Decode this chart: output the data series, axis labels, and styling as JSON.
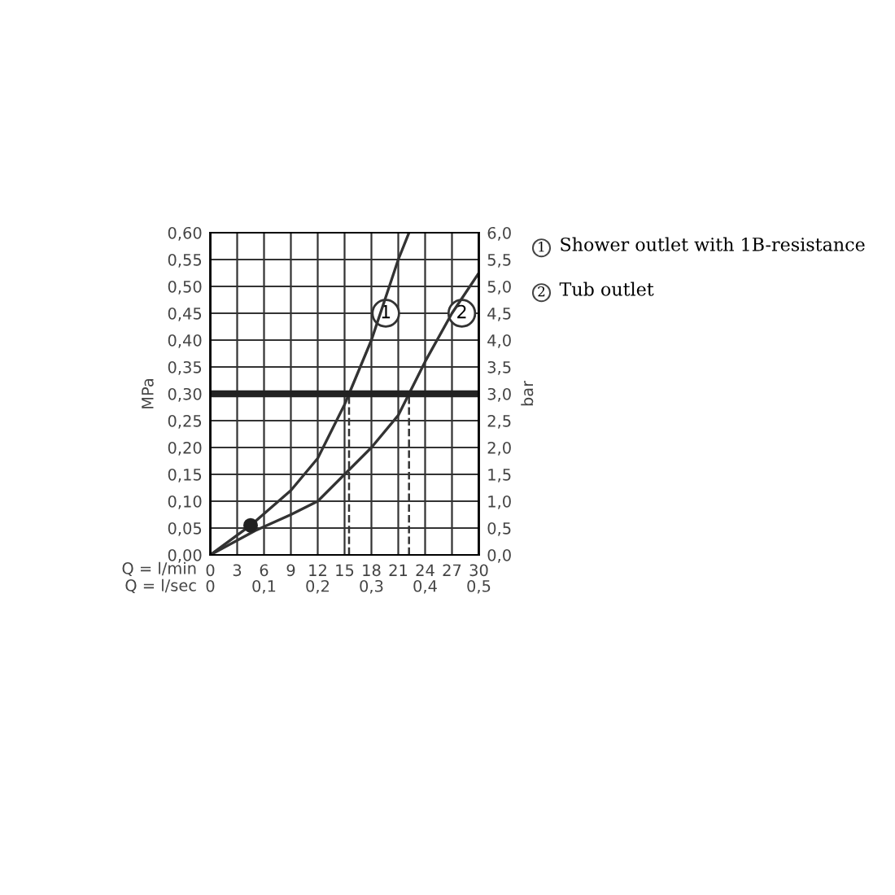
{
  "chart_data": {
    "type": "line",
    "xlabel": "Q = l/min",
    "x2label": "Q = l/sec",
    "ylabel": "MPa",
    "y2label": "bar",
    "xlim": [
      0,
      30
    ],
    "xticks": [
      0,
      3,
      6,
      9,
      12,
      15,
      18,
      21,
      24,
      27,
      30
    ],
    "x2lim": [
      0,
      0.5
    ],
    "x2ticks": [
      0,
      {
        "value": 0.1,
        "label": "0,1"
      },
      {
        "value": 0.2,
        "label": "0,2"
      },
      {
        "value": 0.3,
        "label": "0,3"
      },
      {
        "value": 0.4,
        "label": "0,4"
      },
      {
        "value": 0.5,
        "label": "0,5"
      }
    ],
    "ylim": [
      0,
      0.6
    ],
    "yticks": [
      {
        "value": 0,
        "label": "0,00"
      },
      {
        "value": 0.05,
        "label": "0,05"
      },
      {
        "value": 0.1,
        "label": "0,10"
      },
      {
        "value": 0.15,
        "label": "0,15"
      },
      {
        "value": 0.2,
        "label": "0,20"
      },
      {
        "value": 0.25,
        "label": "0,25"
      },
      {
        "value": 0.3,
        "label": "0,30"
      },
      {
        "value": 0.35,
        "label": "0,35"
      },
      {
        "value": 0.4,
        "label": "0,40"
      },
      {
        "value": 0.45,
        "label": "0,45"
      },
      {
        "value": 0.5,
        "label": "0,50"
      },
      {
        "value": 0.55,
        "label": "0,55"
      },
      {
        "value": 0.6,
        "label": "0,60"
      }
    ],
    "y2lim": [
      0,
      6
    ],
    "y2ticks": [
      {
        "value": 0,
        "label": "0,0"
      },
      {
        "value": 0.5,
        "label": "0,5"
      },
      {
        "value": 1,
        "label": "1,0"
      },
      {
        "value": 1.5,
        "label": "1,5"
      },
      {
        "value": 2,
        "label": "2,0"
      },
      {
        "value": 2.5,
        "label": "2,5"
      },
      {
        "value": 3,
        "label": "3,0"
      },
      {
        "value": 3.5,
        "label": "3,5"
      },
      {
        "value": 4,
        "label": "4,0"
      },
      {
        "value": 4.5,
        "label": "4,5"
      },
      {
        "value": 5,
        "label": "5,0"
      },
      {
        "value": 5.5,
        "label": "5,5"
      },
      {
        "value": 6,
        "label": "6,0"
      }
    ],
    "grid": true,
    "legend": false,
    "series": [
      {
        "color": "#333333",
        "x": [
          0,
          4.5,
          9,
          12,
          15,
          15.5,
          18,
          21,
          22.2
        ],
        "values": [
          0,
          0.055,
          0.12,
          0.18,
          0.28,
          0.3,
          0.4,
          0.55,
          0.6
        ]
      },
      {
        "color": "#333333",
        "x": [
          0,
          5,
          9,
          12,
          15,
          18,
          21,
          22.2,
          24,
          27,
          30
        ],
        "values": [
          0,
          0.045,
          0.075,
          0.1,
          0.15,
          0.2,
          0.26,
          0.3,
          0.36,
          0.45,
          0.525
        ]
      },
      {
        "type": "scatter",
        "color": "#222222",
        "x": [
          4.5
        ],
        "values": [
          0.055
        ]
      },
      {
        "color": "#333333",
        "line_style": "dashed",
        "x": [
          15.5,
          15.5
        ],
        "values": [
          0,
          0.3
        ]
      },
      {
        "color": "#333333",
        "line_style": "dashed",
        "x": [
          22.2,
          22.2
        ],
        "values": [
          0,
          0.3
        ]
      }
    ],
    "ref_lines": [
      {
        "axis": "y",
        "value": 0.3,
        "color": "#222222"
      }
    ],
    "annotations": [
      {
        "text": "1",
        "x": 19.6,
        "y": 0.45
      },
      {
        "text": "2",
        "x": 28.1,
        "y": 0.45
      },
      "1",
      "Shower outlet with 1B-resistance",
      "2",
      "Tub outlet"
    ]
  }
}
